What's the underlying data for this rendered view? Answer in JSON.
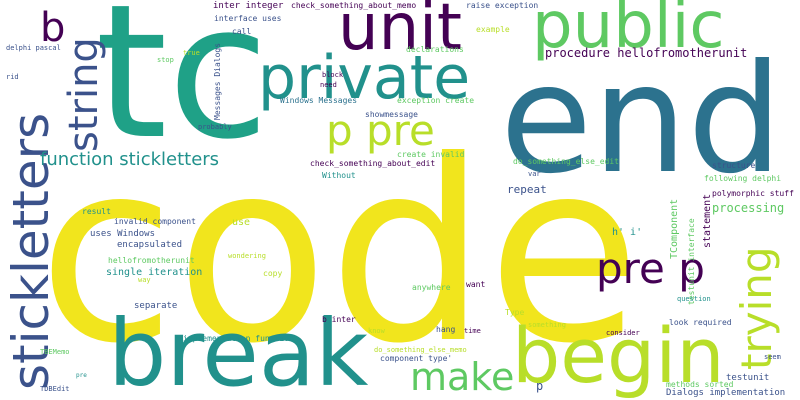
{
  "palette": {
    "yellow": "#f1e51d",
    "lime": "#b8de29",
    "green": "#5ec962",
    "teal": "#21918c",
    "tealgreen": "#1fa187",
    "blue": "#2c728e",
    "indigo": "#3b528b",
    "purple": "#472d7b",
    "dark": "#440154"
  },
  "words": {
    "code": "code",
    "tc": "tc",
    "end": "end",
    "break": "break",
    "begin": "begin",
    "unit": "unit",
    "public": "public",
    "private": "private",
    "stickletters": "stickletters",
    "string": "string",
    "b": "b",
    "p_pre": "p pre",
    "pre_p": "pre p",
    "trying": "trying",
    "make": "make",
    "function_stickletters": "function stickletters",
    "procedure_hellofromotherunit": "procedure hellofromotherunit",
    "interface_uses": "interface uses",
    "inter_integer": "inter integer",
    "check_something_about_memo": "check_something_about_memo",
    "raise_exception": "raise exception",
    "example": "example",
    "declarations": "declarations",
    "call": "call",
    "true": "true",
    "stop": "stop",
    "delphi_pascal": "delphi pascal",
    "rid": "rid",
    "block": "block",
    "need": "need",
    "messages_dialogs": "Messages Dialogs",
    "windows_messages": "Windows Messages",
    "exception_create": "exception create",
    "showmessage": "showmessage",
    "probably": "probably",
    "create_invalid": "create invalid",
    "check_something_about_edit": "check_something_about_edit",
    "do_something_else_edit": "do_something_else_edit",
    "without": "Without",
    "var": "var",
    "structure": "structure",
    "following_delphi": "following delphi",
    "polymorphic_stuff": "polymorphic stuff",
    "processing": "processing",
    "tcomponent": "TComponent",
    "testunit_interface": "testunit interface",
    "statement": "statement",
    "repeat": "repeat",
    "h_i": "h' i'",
    "result": "result",
    "invalid_component": "invalid component",
    "uses_windows": "uses Windows",
    "encapsulated": "encapsulated",
    "use": "use",
    "hellofromotherunit": "hellofromotherunit",
    "single_iteration": "single iteration",
    "wondering": "wondering",
    "copy": "copy",
    "way": "way",
    "anywhere": "anywhere",
    "want": "want",
    "question": "question",
    "separate": "separate",
    "implementation_function": "implementation function",
    "b_inter": "b inter",
    "type": "Type",
    "look_required": "look required",
    "know": "know",
    "something": "something",
    "hang": "hang",
    "time": "time",
    "consider": "consider",
    "tbememo": "TBEMemo",
    "do_something_else_memo": "do_something_else_memo",
    "component_type": "component type'",
    "seem": "seem",
    "pre": "pre",
    "p": "p",
    "testunit": "testunit",
    "methods_sorted": "methods sorted",
    "tdbedit": "TDBEdit",
    "dialogs_implementation": "Dialogs implementation"
  }
}
